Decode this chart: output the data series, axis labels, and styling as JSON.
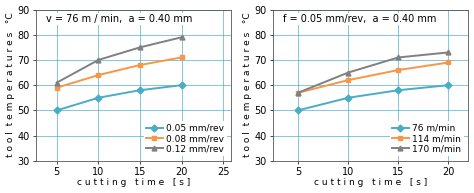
{
  "plot1": {
    "title": "v = 76 m / min,  a = 0.40 mm",
    "xlabel": "c u t t i n g   t i m e   [ s ]",
    "ylabel": "t o o l  t e m p e r a t u r e s   °C",
    "xlim": [
      2.5,
      26
    ],
    "ylim": [
      30,
      90
    ],
    "xticks": [
      5,
      10,
      15,
      20,
      25
    ],
    "yticks": [
      30,
      40,
      50,
      60,
      70,
      80,
      90
    ],
    "series": [
      {
        "label": "0.05 mm/rev",
        "x": [
          5,
          10,
          15,
          20
        ],
        "y": [
          50,
          55,
          58,
          60
        ],
        "color": "#4bacc6",
        "marker": "D",
        "linestyle": "-"
      },
      {
        "label": "0.08 mm/rev",
        "x": [
          5,
          10,
          15,
          20
        ],
        "y": [
          59,
          64,
          68,
          71
        ],
        "color": "#f79646",
        "marker": "s",
        "linestyle": "-"
      },
      {
        "label": "0.12 mm/rev",
        "x": [
          5,
          10,
          15,
          20
        ],
        "y": [
          61,
          70,
          75,
          79
        ],
        "color": "#808080",
        "marker": "^",
        "linestyle": "-"
      }
    ]
  },
  "plot2": {
    "title": "f = 0.05 mm/rev,  a = 0.40 mm",
    "xlabel": "c u t t i n g   t i m e   [ s ]",
    "ylabel": "t o o l  t e m p e r a t u r e s   °C",
    "xlim": [
      2.5,
      22
    ],
    "ylim": [
      30,
      90
    ],
    "xticks": [
      5,
      10,
      15,
      20
    ],
    "yticks": [
      30,
      40,
      50,
      60,
      70,
      80,
      90
    ],
    "series": [
      {
        "label": "76 m/min",
        "x": [
          5,
          10,
          15,
          20
        ],
        "y": [
          50,
          55,
          58,
          60
        ],
        "color": "#4bacc6",
        "marker": "D",
        "linestyle": "-"
      },
      {
        "label": "114 m/min",
        "x": [
          5,
          10,
          15,
          20
        ],
        "y": [
          57,
          62,
          66,
          69
        ],
        "color": "#f79646",
        "marker": "s",
        "linestyle": "-"
      },
      {
        "label": "170 m/min",
        "x": [
          5,
          10,
          15,
          20
        ],
        "y": [
          57,
          65,
          71,
          73
        ],
        "color": "#808080",
        "marker": "^",
        "linestyle": "-"
      }
    ]
  },
  "bg_color": "#ffffff",
  "grid_color": "#4bacc6",
  "title_fontsize": 7.0,
  "label_fontsize": 6.5,
  "tick_fontsize": 7,
  "legend_fontsize": 6.5,
  "linewidth": 1.4,
  "markersize": 3.5
}
